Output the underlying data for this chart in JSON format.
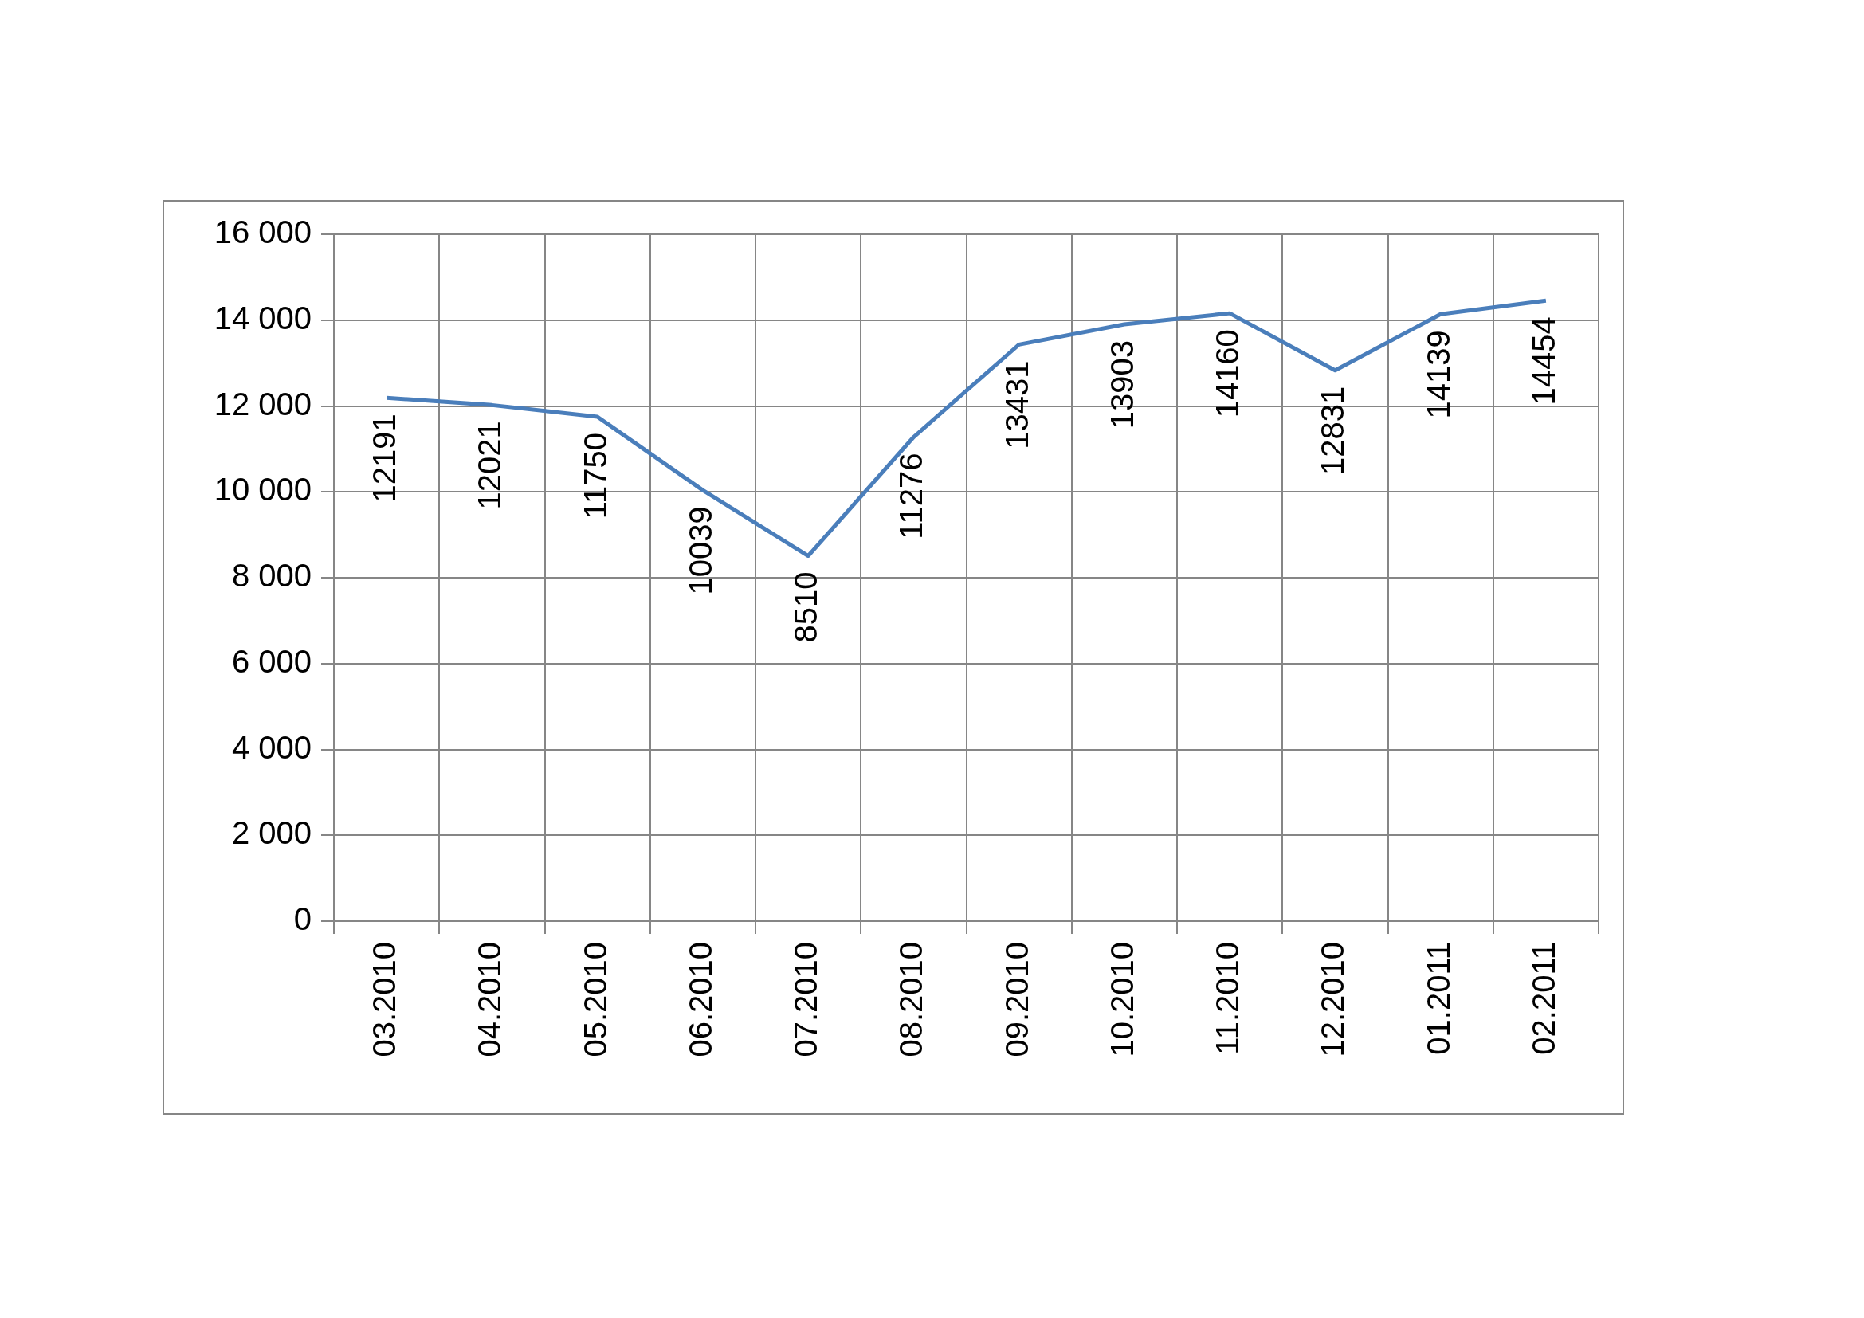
{
  "chart_data": {
    "type": "line",
    "categories": [
      "03.2010",
      "04.2010",
      "05.2010",
      "06.2010",
      "07.2010",
      "08.2010",
      "09.2010",
      "10.2010",
      "11.2010",
      "12.2010",
      "01.2011",
      "02.2011"
    ],
    "series": [
      {
        "color": "#4a7ebb",
        "values": [
          12191,
          12021,
          11750,
          10039,
          8510,
          11276,
          13431,
          13903,
          14160,
          12831,
          14139,
          14454
        ]
      }
    ],
    "ylim": [
      0,
      16000
    ],
    "yticks": [
      {
        "value": 0,
        "label": "0"
      },
      {
        "value": 2000,
        "label": "2 000"
      },
      {
        "value": 4000,
        "label": "4 000"
      },
      {
        "value": 6000,
        "label": "6 000"
      },
      {
        "value": 8000,
        "label": "8 000"
      },
      {
        "value": 10000,
        "label": "10 000"
      },
      {
        "value": 12000,
        "label": "12 000"
      },
      {
        "value": 14000,
        "label": "14 000"
      },
      {
        "value": 16000,
        "label": "16 000"
      }
    ],
    "grid": true,
    "legend": false,
    "marker": "none",
    "line_style": "solid",
    "data_labels": true
  }
}
